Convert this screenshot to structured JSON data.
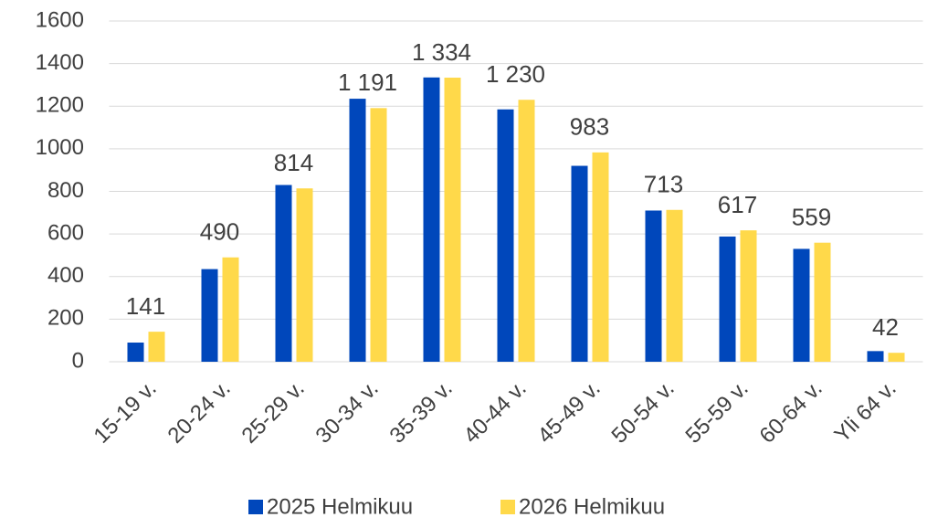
{
  "chart_data": {
    "type": "bar",
    "categories": [
      "15-19 v.",
      "20-24 v.",
      "25-29 v.",
      "30-34 v.",
      "35-39 v.",
      "40-44 v.",
      "45-49 v.",
      "50-54 v.",
      "55-59 v.",
      "60-64 v.",
      "Yli 64 v."
    ],
    "series": [
      {
        "name": "2025 Helmikuu",
        "color": "#0047bb",
        "values": [
          90,
          435,
          830,
          1235,
          1335,
          1185,
          920,
          710,
          588,
          530,
          50
        ]
      },
      {
        "name": "2026 Helmikuu",
        "color": "#ffd94a",
        "values": [
          141,
          490,
          814,
          1191,
          1334,
          1230,
          983,
          713,
          617,
          559,
          42
        ],
        "value_labels": [
          "141",
          "490",
          "814",
          "1 191",
          "1 334",
          "1 230",
          "983",
          "713",
          "617",
          "559",
          "42"
        ]
      }
    ],
    "ylim": [
      0,
      1600
    ],
    "yticks": [
      0,
      200,
      400,
      600,
      800,
      1000,
      1200,
      1400,
      1600
    ],
    "grid": true,
    "legend": "bottom"
  }
}
